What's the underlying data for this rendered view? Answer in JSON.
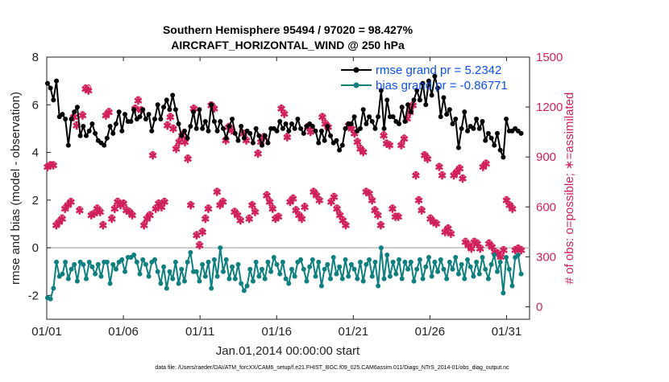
{
  "chart_data": {
    "type": "line",
    "title": "Southern Hemisphere 95494 / 97020 = 98.427%",
    "subtitle": "AIRCRAFT_HORIZONTAL_WIND @ 250 hPa",
    "xlabel": "Jan.01,2014 00:00:00 start",
    "ylabel": "rmse and bias (model - observation)",
    "y2label": "# of obs: o=possible; ∗=assimilated",
    "footnote": "data file: /Users/raeder/DAI/ATM_forcXX/CAM6_setup/f.e21.FHIST_BGC.f09_025.CAM6assim.011/Diags_NTrS_2014-01/obs_diag_output.nc",
    "x_range": [
      0,
      31.5
    ],
    "x_ticks": [
      0,
      5,
      10,
      15,
      20,
      25,
      30
    ],
    "x_tick_labels": [
      "01/01",
      "01/06",
      "01/11",
      "01/16",
      "01/21",
      "01/26",
      "01/31"
    ],
    "ylim": [
      -3,
      8
    ],
    "y_ticks": [
      -2,
      0,
      2,
      4,
      6,
      8
    ],
    "y_tick_labels": [
      "-2",
      "0",
      "2",
      "4",
      "6",
      "8"
    ],
    "y2lim": [
      -75,
      1500
    ],
    "y2_ticks": [
      0,
      300,
      600,
      900,
      1200,
      1500
    ],
    "y2_tick_labels": [
      "0",
      "300",
      "600",
      "900",
      "1200",
      "1500"
    ],
    "zero_line": 0,
    "colors": {
      "rmse": "#000000",
      "bias": "#0f7f7f",
      "counts": "#d0215d",
      "legend_text": "#0d4ff0",
      "axis": "#222222",
      "zero_line": "#bbbbbb"
    },
    "legend": {
      "position": "top-right",
      "entries": [
        "rmse grand pr = 5.2342",
        "bias grand pr = -0.86771"
      ]
    },
    "series": [
      {
        "name": "rmse",
        "axis": "left",
        "values": [
          6.9,
          6.7,
          6.2,
          7.0,
          5.5,
          5.6,
          5.4,
          4.3,
          5.4,
          5.7,
          5.9,
          4.7,
          5.1,
          4.7,
          4.9,
          5.2,
          4.8,
          4.5,
          4.4,
          4.3,
          4.6,
          5.1,
          4.8,
          5.2,
          5.7,
          4.9,
          5.6,
          5.3,
          5.3,
          5.8,
          5.4,
          5.5,
          5.8,
          5.4,
          5.6,
          4.9,
          5.4,
          6.0,
          5.4,
          5.9,
          6.2,
          5.8,
          6.4,
          5.8,
          5.2,
          4.7,
          4.9,
          4.6,
          5.1,
          5.7,
          5.0,
          5.8,
          5.0,
          5.3,
          4.9,
          6.0,
          5.3,
          4.9,
          5.3,
          5.0,
          4.6,
          5.1,
          5.4,
          4.8,
          4.5,
          5.1,
          4.6,
          4.9,
          4.8,
          4.4,
          5.0,
          4.7,
          4.3,
          4.7,
          4.4,
          5.0,
          5.0,
          4.9,
          5.3,
          5.0,
          5.2,
          4.9,
          5.2,
          5.0,
          5.4,
          5.0,
          4.8,
          5.1,
          5.2,
          5.1,
          4.9,
          4.4,
          4.9,
          4.5,
          5.1,
          4.7,
          4.4,
          4.5,
          4.1,
          4.3,
          5.0,
          5.2,
          5.2,
          5.5,
          4.9,
          5.0,
          5.8,
          5.2,
          5.5,
          5.3,
          5.0,
          5.5,
          6.6,
          5.0,
          6.2,
          5.5,
          5.5,
          5.3,
          5.2,
          5.9,
          5.3,
          6.0,
          5.7,
          6.2,
          6.6,
          6.2,
          6.9,
          6.0,
          7.0,
          6.4,
          7.2,
          6.7,
          5.5,
          6.3,
          5.6,
          5.8,
          5.2,
          5.4,
          4.2,
          5.0,
          5.7,
          4.9,
          5.1,
          5.0,
          5.4,
          5.0,
          5.3,
          4.5,
          4.8,
          4.6,
          4.3,
          4.8,
          4.1,
          3.8,
          5.4,
          4.9,
          4.9,
          5.0,
          4.9,
          4.8
        ]
      },
      {
        "name": "bias",
        "axis": "left",
        "values": [
          -2.1,
          -2.15,
          -1.7,
          -0.6,
          -1.2,
          -1.1,
          -0.6,
          -1.3,
          -0.9,
          -0.7,
          -1.4,
          -0.6,
          -0.7,
          -1.3,
          -0.6,
          -0.8,
          -1.1,
          -0.7,
          -1.2,
          -0.6,
          -0.6,
          -1.5,
          -0.7,
          -0.9,
          -0.6,
          -0.5,
          -1.0,
          -0.4,
          -0.4,
          -0.3,
          -0.6,
          -1.1,
          -0.5,
          -0.7,
          -1.2,
          -0.6,
          -0.5,
          -1.0,
          -1.5,
          -0.8,
          -1.7,
          -1.0,
          -1.3,
          -0.6,
          -1.5,
          -0.9,
          -1.4,
          -0.6,
          -0.2,
          -1.0,
          -1.0,
          -1.4,
          -0.7,
          -1.2,
          -0.6,
          -1.7,
          -0.5,
          -1.2,
          0.0,
          -1.0,
          -0.5,
          -1.3,
          -0.8,
          -1.3,
          -0.7,
          -1.5,
          -1.8,
          -1.6,
          -0.9,
          -1.4,
          -0.6,
          -1.2,
          -0.9,
          -1.3,
          -0.6,
          -1.0,
          -0.4,
          -0.7,
          -1.1,
          -0.6,
          -1.3,
          -1.5,
          -0.9,
          -1.2,
          -0.6,
          -0.5,
          -0.9,
          -1.4,
          -0.8,
          -0.5,
          -1.2,
          -0.6,
          -1.6,
          -0.9,
          -0.7,
          -1.3,
          -0.4,
          -1.1,
          -0.8,
          -1.3,
          -0.5,
          -1.2,
          -0.7,
          -0.9,
          -1.3,
          -0.6,
          -1.4,
          -0.7,
          -0.5,
          -1.2,
          -0.6,
          -1.6,
          0.0,
          -1.3,
          -0.3,
          -1.2,
          -0.6,
          -1.1,
          -0.5,
          -1.3,
          -0.6,
          -0.9,
          -0.6,
          -1.4,
          -0.9,
          -0.5,
          -1.3,
          -0.8,
          -0.4,
          -1.2,
          -0.6,
          -1.0,
          -0.5,
          -0.9,
          -1.3,
          -0.6,
          -0.9,
          -0.4,
          -1.1,
          -0.7,
          -1.3,
          -0.5,
          -0.8,
          -1.2,
          -0.6,
          -1.1,
          -0.4,
          -0.9,
          -1.3,
          -0.7,
          -0.3,
          -1.0,
          -0.6,
          -1.9,
          -0.4,
          -0.9,
          -1.6,
          -0.4,
          -0.3,
          -1.1
        ]
      },
      {
        "name": "obs_possible",
        "axis": "right",
        "marker": "o",
        "values": [
          850,
          860,
          860,
          500,
          520,
          540,
          600,
          620,
          640,
          1150,
          1100,
          590,
          1160,
          1320,
          1320,
          560,
          570,
          600,
          580,
          500,
          1160,
          1180,
          540,
          600,
          640,
          620,
          630,
          590,
          580,
          560,
          1200,
          1250,
          1190,
          500,
          540,
          560,
          920,
          600,
          630,
          610,
          640,
          1100,
          1150,
          1080,
          960,
          1000,
          1040,
          1000,
          900,
          620,
          1200,
          440,
          380,
          460,
          540,
          600,
          1220,
          1200,
          700,
          620,
          640,
          1010,
          1090,
          1070,
          580,
          560,
          530,
          1050,
          1010,
          540,
          620,
          580,
          930,
          1000,
          1030,
          680,
          640,
          600,
          540,
          550,
          1200,
          1170,
          1030,
          640,
          660,
          590,
          560,
          540,
          610,
          1090,
          1060,
          700,
          680,
          650,
          1150,
          1110,
          1090,
          640,
          670,
          600,
          560,
          530,
          500,
          1100,
          1080,
          1050,
          1000,
          960,
          940,
          700,
          690,
          650,
          590,
          560,
          500,
          1040,
          990,
          980,
          600,
          550,
          550,
          980,
          1020,
          1140,
          1180,
          1220,
          800,
          650,
          590,
          920,
          900,
          540,
          520,
          510,
          850,
          800,
          460,
          480,
          450,
          800,
          820,
          840,
          780,
          400,
          380,
          360,
          400,
          390,
          360,
          850,
          870,
          390,
          370,
          340,
          330,
          310,
          350,
          650,
          620,
          600,
          350,
          360,
          350
        ]
      },
      {
        "name": "obs_assimilated",
        "axis": "right",
        "marker": "*",
        "values": [
          840,
          850,
          850,
          490,
          510,
          530,
          590,
          610,
          630,
          1140,
          1090,
          580,
          1150,
          1310,
          1300,
          550,
          560,
          590,
          570,
          490,
          1150,
          1170,
          530,
          590,
          630,
          610,
          620,
          580,
          570,
          550,
          1190,
          1240,
          1180,
          490,
          530,
          550,
          910,
          590,
          620,
          600,
          630,
          1090,
          1140,
          1070,
          950,
          990,
          1030,
          990,
          890,
          610,
          1190,
          430,
          370,
          450,
          530,
          590,
          1210,
          1190,
          690,
          610,
          630,
          1000,
          1080,
          1060,
          570,
          550,
          520,
          1040,
          1000,
          530,
          610,
          570,
          920,
          990,
          1020,
          670,
          630,
          590,
          530,
          540,
          1190,
          1160,
          1020,
          630,
          650,
          580,
          550,
          530,
          600,
          1080,
          1050,
          690,
          670,
          640,
          1140,
          1100,
          1080,
          630,
          660,
          590,
          550,
          520,
          490,
          1090,
          1070,
          1040,
          990,
          950,
          930,
          690,
          680,
          640,
          580,
          550,
          490,
          1030,
          980,
          970,
          590,
          540,
          540,
          970,
          1010,
          1130,
          1170,
          1210,
          790,
          640,
          580,
          910,
          890,
          530,
          510,
          500,
          840,
          790,
          450,
          470,
          440,
          790,
          810,
          830,
          770,
          390,
          370,
          350,
          390,
          380,
          350,
          840,
          860,
          380,
          360,
          330,
          320,
          300,
          340,
          640,
          610,
          590,
          340,
          350,
          340
        ]
      }
    ]
  }
}
